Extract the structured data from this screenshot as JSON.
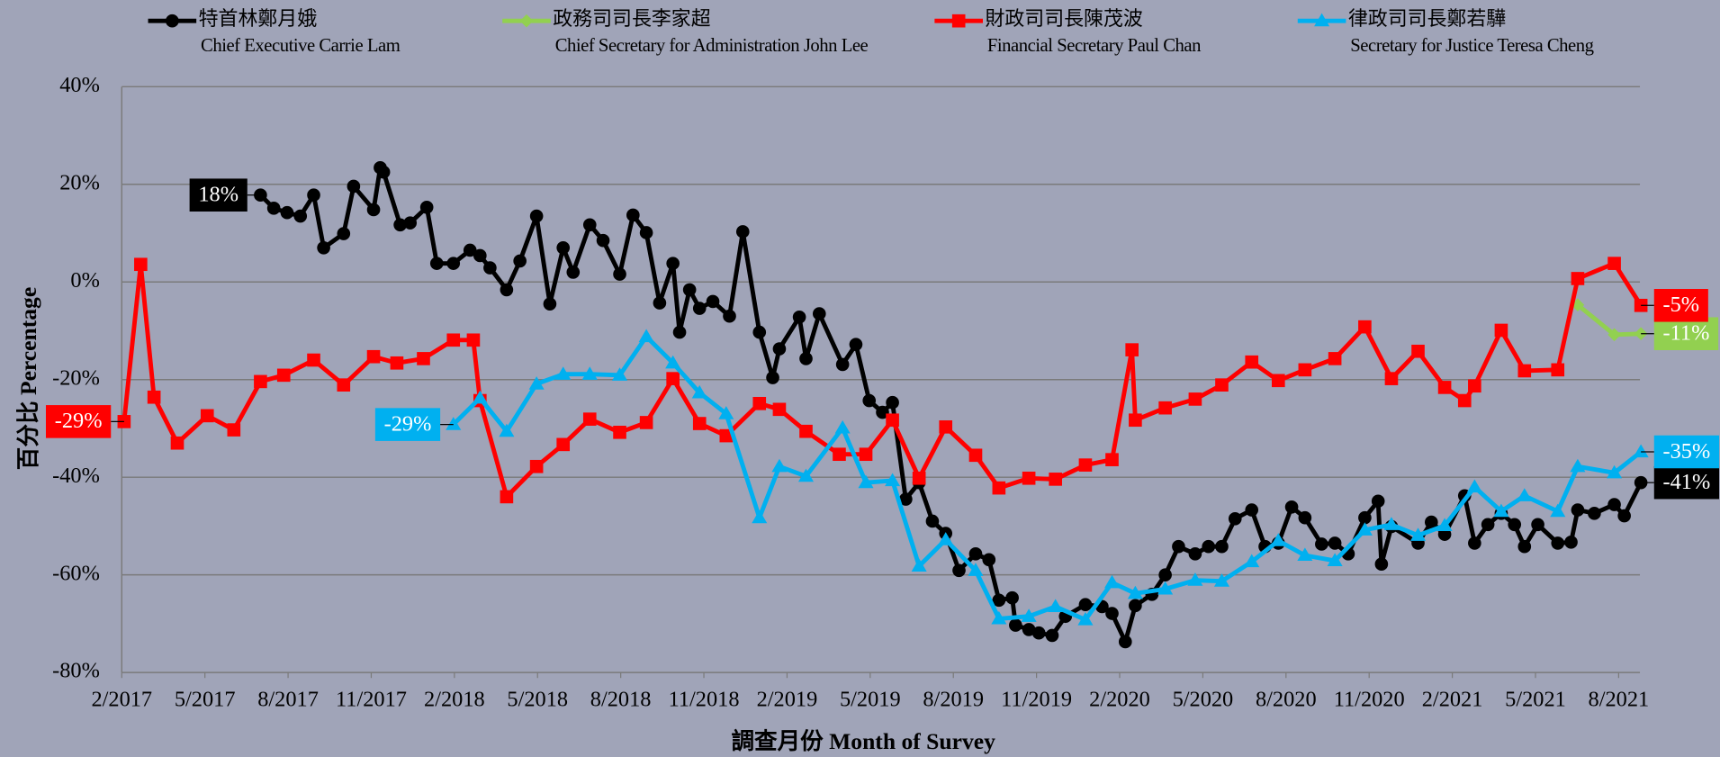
{
  "chart_data": {
    "type": "line",
    "y_label": "百分比 Percentage",
    "x_label": "調查月份 Month of Survey",
    "xlim": [
      2017.083,
      2021.647
    ],
    "xticks": [
      {
        "value": 2017.083,
        "label": "2/2017"
      },
      {
        "value": 2017.333,
        "label": "5/2017"
      },
      {
        "value": 2017.583,
        "label": "8/2017"
      },
      {
        "value": 2017.833,
        "label": "11/2017"
      },
      {
        "value": 2018.083,
        "label": "2/2018"
      },
      {
        "value": 2018.333,
        "label": "5/2018"
      },
      {
        "value": 2018.583,
        "label": "8/2018"
      },
      {
        "value": 2018.833,
        "label": "11/2018"
      },
      {
        "value": 2019.083,
        "label": "2/2019"
      },
      {
        "value": 2019.333,
        "label": "5/2019"
      },
      {
        "value": 2019.583,
        "label": "8/2019"
      },
      {
        "value": 2019.833,
        "label": "11/2019"
      },
      {
        "value": 2020.083,
        "label": "2/2020"
      },
      {
        "value": 2020.333,
        "label": "5/2020"
      },
      {
        "value": 2020.583,
        "label": "8/2020"
      },
      {
        "value": 2020.833,
        "label": "11/2020"
      },
      {
        "value": 2021.083,
        "label": "2/2021"
      },
      {
        "value": 2021.333,
        "label": "5/2021"
      },
      {
        "value": 2021.583,
        "label": "8/2021"
      }
    ],
    "ylim": [
      -80,
      40
    ],
    "yticks": [
      {
        "value": -80,
        "label": "-80%"
      },
      {
        "value": -60,
        "label": "-60%"
      },
      {
        "value": -40,
        "label": "-40%"
      },
      {
        "value": -20,
        "label": "-20%"
      },
      {
        "value": 0,
        "label": "0%"
      },
      {
        "value": 20,
        "label": "20%"
      },
      {
        "value": 40,
        "label": "40%"
      }
    ],
    "grid": true,
    "series": [
      {
        "name": "特首林鄭月娥",
        "name_en": "Chief Executive Carrie Lam",
        "color": "#000000",
        "marker": "circle",
        "x": [
          2017.5,
          2017.54,
          2017.58,
          2017.62,
          2017.66,
          2017.69,
          2017.75,
          2017.78,
          2017.84,
          2017.86,
          2017.87,
          2017.92,
          2017.95,
          2018.0,
          2018.03,
          2018.08,
          2018.13,
          2018.16,
          2018.19,
          2018.24,
          2018.28,
          2018.33,
          2018.37,
          2018.41,
          2018.44,
          2018.49,
          2018.53,
          2018.58,
          2018.62,
          2018.66,
          2018.7,
          2018.74,
          2018.76,
          2018.79,
          2018.82,
          2018.86,
          2018.91,
          2018.95,
          2019.0,
          2019.04,
          2019.06,
          2019.12,
          2019.14,
          2019.18,
          2019.25,
          2019.29,
          2019.33,
          2019.37,
          2019.4,
          2019.44,
          2019.48,
          2019.52,
          2019.56,
          2019.6,
          2019.65,
          2019.69,
          2019.72,
          2019.76,
          2019.77,
          2019.81,
          2019.84,
          2019.88,
          2019.92,
          2019.98,
          2020.03,
          2020.06,
          2020.1,
          2020.13,
          2020.18,
          2020.22,
          2020.26,
          2020.31,
          2020.35,
          2020.39,
          2020.43,
          2020.48,
          2020.52,
          2020.56,
          2020.6,
          2020.64,
          2020.69,
          2020.73,
          2020.77,
          2020.82,
          2020.86,
          2020.87,
          2020.9,
          2020.98,
          2021.02,
          2021.06,
          2021.12,
          2021.15,
          2021.19,
          2021.23,
          2021.27,
          2021.3,
          2021.34,
          2021.4,
          2021.44,
          2021.46,
          2021.51,
          2021.57,
          2021.6,
          2021.65
        ],
        "values": [
          17.8,
          15.1,
          14.2,
          13.5,
          17.8,
          7.0,
          9.9,
          19.6,
          14.8,
          23.4,
          22.5,
          11.7,
          12.1,
          15.3,
          3.8,
          3.8,
          6.5,
          5.4,
          2.9,
          -1.6,
          4.3,
          13.5,
          -4.5,
          7.0,
          2.0,
          11.7,
          8.5,
          1.6,
          13.7,
          10.1,
          -4.3,
          3.8,
          -10.3,
          -1.6,
          -5.4,
          -4.0,
          -7.0,
          10.3,
          -10.3,
          -19.6,
          -13.7,
          -7.2,
          -15.7,
          -6.5,
          -16.9,
          -12.8,
          -24.3,
          -26.7,
          -24.7,
          -44.5,
          -41.1,
          -49.0,
          -51.5,
          -59.1,
          -55.7,
          -56.9,
          -65.2,
          -64.7,
          -70.3,
          -71.2,
          -71.9,
          -72.4,
          -68.5,
          -66.1,
          -66.5,
          -67.9,
          -73.7,
          -66.3,
          -64.0,
          -60.0,
          -54.2,
          -55.7,
          -54.2,
          -54.2,
          -48.5,
          -46.7,
          -54.2,
          -53.5,
          -46.1,
          -48.3,
          -53.7,
          -53.5,
          -55.7,
          -48.3,
          -44.9,
          -57.8,
          -50.1,
          -53.5,
          -49.2,
          -51.7,
          -43.8,
          -53.5,
          -49.7,
          -47.4,
          -49.7,
          -54.2,
          -49.7,
          -53.5,
          -53.3,
          -46.7,
          -47.4,
          -45.6,
          -47.9,
          -41.1
        ],
        "value_labels": [
          "18%",
          null,
          null,
          null,
          null,
          null,
          null,
          null,
          null,
          null,
          null,
          null,
          null,
          null,
          null,
          null,
          null,
          null,
          null,
          null,
          null,
          null,
          null,
          null,
          null,
          null,
          null,
          null,
          null,
          null,
          null,
          null,
          null,
          null,
          null,
          null,
          null,
          null,
          null,
          null,
          null,
          null,
          null,
          null,
          null,
          null,
          null,
          null,
          null,
          null,
          null,
          null,
          null,
          null,
          null,
          null,
          null,
          null,
          null,
          null,
          null,
          null,
          null,
          null,
          null,
          null,
          null,
          null,
          null,
          null,
          null,
          null,
          null,
          null,
          null,
          null,
          null,
          null,
          null,
          null,
          null,
          null,
          null,
          null,
          null,
          null,
          null,
          null,
          null,
          null,
          null,
          null,
          null,
          null,
          null,
          null,
          null,
          null,
          null,
          null,
          null,
          null,
          null,
          "-41%"
        ]
      },
      {
        "name": "政務司司長李家超",
        "name_en": "Chief Secretary for Administration John Lee",
        "color": "#92d050",
        "marker": "diamond",
        "x": [
          2021.46,
          2021.57,
          2021.65
        ],
        "values": [
          -4.7,
          -10.8,
          -10.6
        ],
        "value_labels": [
          null,
          null,
          "-11%"
        ]
      },
      {
        "name": "財政司司長陳茂波",
        "name_en": "Financial Secretary Paul Chan",
        "color": "#ff0000",
        "marker": "square",
        "x": [
          2017.09,
          2017.14,
          2017.18,
          2017.25,
          2017.34,
          2017.42,
          2017.5,
          2017.57,
          2017.66,
          2017.75,
          2017.84,
          2017.91,
          2017.99,
          2018.08,
          2018.14,
          2018.16,
          2018.24,
          2018.33,
          2018.41,
          2018.49,
          2018.58,
          2018.66,
          2018.74,
          2018.82,
          2018.9,
          2019.0,
          2019.06,
          2019.14,
          2019.24,
          2019.32,
          2019.4,
          2019.48,
          2019.56,
          2019.65,
          2019.72,
          2019.81,
          2019.89,
          2019.98,
          2020.06,
          2020.12,
          2020.13,
          2020.22,
          2020.31,
          2020.39,
          2020.48,
          2020.56,
          2020.64,
          2020.73,
          2020.82,
          2020.9,
          2020.98,
          2021.06,
          2021.12,
          2021.15,
          2021.23,
          2021.3,
          2021.4,
          2021.46,
          2021.57,
          2021.65
        ],
        "values": [
          -28.6,
          3.6,
          -23.6,
          -33.0,
          -27.4,
          -30.3,
          -20.4,
          -19.1,
          -16.0,
          -21.1,
          -15.3,
          -16.6,
          -15.7,
          -11.9,
          -11.9,
          -24.3,
          -44.0,
          -37.8,
          -33.3,
          -28.1,
          -30.8,
          -28.8,
          -19.8,
          -29.0,
          -31.5,
          -24.9,
          -26.1,
          -30.6,
          -35.3,
          -35.3,
          -28.3,
          -40.2,
          -29.7,
          -35.5,
          -42.2,
          -40.2,
          -40.4,
          -37.5,
          -36.4,
          -13.9,
          -28.3,
          -25.8,
          -24.0,
          -21.1,
          -16.4,
          -20.2,
          -18.0,
          -15.7,
          -9.2,
          -19.8,
          -14.2,
          -21.6,
          -24.3,
          -21.3,
          -9.9,
          -18.2,
          -18.0,
          0.7,
          3.8,
          -4.8
        ],
        "value_labels": [
          "-29%",
          null,
          null,
          null,
          null,
          null,
          null,
          null,
          null,
          null,
          null,
          null,
          null,
          null,
          null,
          null,
          null,
          null,
          null,
          null,
          null,
          null,
          null,
          null,
          null,
          null,
          null,
          null,
          null,
          null,
          null,
          null,
          null,
          null,
          null,
          null,
          null,
          null,
          null,
          null,
          null,
          null,
          null,
          null,
          null,
          null,
          null,
          null,
          null,
          null,
          null,
          null,
          null,
          null,
          null,
          null,
          null,
          null,
          null,
          "-5%"
        ]
      },
      {
        "name": "律政司司長鄭若驊",
        "name_en": "Secretary for Justice Teresa Cheng",
        "color": "#00b0f0",
        "marker": "triangle",
        "x": [
          2018.08,
          2018.16,
          2018.24,
          2018.33,
          2018.41,
          2018.49,
          2018.58,
          2018.66,
          2018.74,
          2018.82,
          2018.9,
          2019.0,
          2019.06,
          2019.14,
          2019.25,
          2019.32,
          2019.4,
          2019.48,
          2019.56,
          2019.65,
          2019.72,
          2019.81,
          2019.89,
          2019.98,
          2020.06,
          2020.13,
          2020.22,
          2020.31,
          2020.39,
          2020.48,
          2020.56,
          2020.64,
          2020.73,
          2020.82,
          2020.9,
          2020.98,
          2021.06,
          2021.15,
          2021.23,
          2021.3,
          2021.4,
          2021.46,
          2021.57,
          2021.65
        ],
        "values": [
          -29.2,
          -23.8,
          -30.6,
          -20.9,
          -18.9,
          -18.9,
          -19.1,
          -11.2,
          -16.6,
          -22.7,
          -27.0,
          -48.3,
          -37.8,
          -39.8,
          -29.9,
          -41.1,
          -40.7,
          -58.2,
          -52.8,
          -59.1,
          -69.0,
          -68.5,
          -66.5,
          -69.2,
          -61.6,
          -63.8,
          -62.9,
          -61.1,
          -61.3,
          -57.3,
          -53.0,
          -56.0,
          -57.1,
          -50.8,
          -49.7,
          -51.9,
          -49.9,
          -42.0,
          -47.0,
          -43.8,
          -47.0,
          -37.8,
          -39.1,
          -34.8
        ],
        "value_labels": [
          "-29%",
          null,
          null,
          null,
          null,
          null,
          null,
          null,
          null,
          null,
          null,
          null,
          null,
          null,
          null,
          null,
          null,
          null,
          null,
          null,
          null,
          null,
          null,
          null,
          null,
          null,
          null,
          null,
          null,
          null,
          null,
          null,
          null,
          null,
          null,
          null,
          null,
          null,
          null,
          null,
          null,
          null,
          null,
          "-35%"
        ]
      }
    ]
  }
}
